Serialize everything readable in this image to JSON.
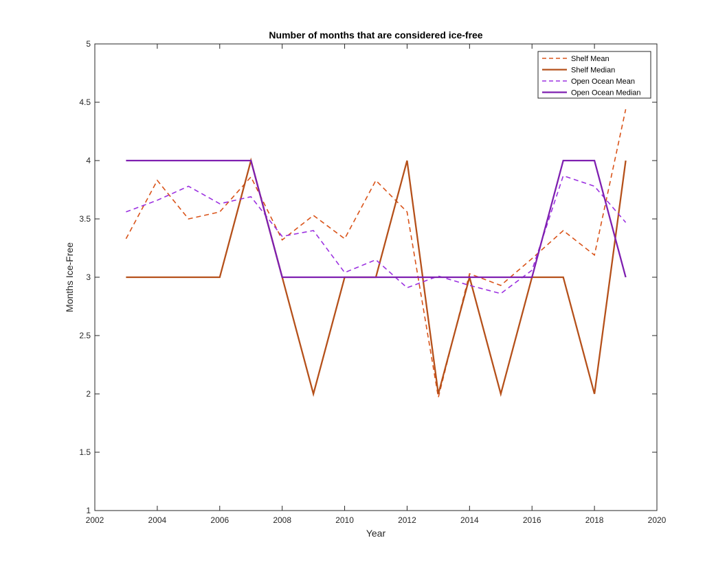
{
  "chart_data": {
    "type": "line",
    "title": "Number of months that are considered ice-free",
    "xlabel": "Year",
    "ylabel": "Months Ice-Free",
    "xlim": [
      2002,
      2020
    ],
    "ylim": [
      1,
      5
    ],
    "x_ticks": [
      2002,
      2004,
      2006,
      2008,
      2010,
      2012,
      2014,
      2016,
      2018,
      2020
    ],
    "y_ticks": [
      1,
      1.5,
      2,
      2.5,
      3,
      3.5,
      4,
      4.5,
      5
    ],
    "grid": false,
    "legend_position": "top-right",
    "x": [
      2003,
      2004,
      2005,
      2006,
      2007,
      2008,
      2009,
      2010,
      2011,
      2012,
      2013,
      2014,
      2015,
      2016,
      2017,
      2018,
      2019
    ],
    "series": [
      {
        "name": "Shelf Mean",
        "color": "#D95319",
        "dashed": true,
        "values": [
          3.33,
          3.83,
          3.5,
          3.56,
          3.86,
          3.32,
          3.53,
          3.33,
          3.83,
          3.56,
          1.97,
          3.03,
          2.93,
          3.16,
          3.4,
          3.19,
          4.44
        ]
      },
      {
        "name": "Shelf Median",
        "color": "#B5501A",
        "dashed": false,
        "values": [
          3,
          3,
          3,
          3,
          4,
          3,
          2,
          3,
          3,
          4,
          2,
          3,
          2,
          3,
          3,
          2,
          4
        ]
      },
      {
        "name": "Open Ocean Mean",
        "color": "#9B30E0",
        "dashed": true,
        "values": [
          3.56,
          3.66,
          3.78,
          3.63,
          3.69,
          3.35,
          3.4,
          3.04,
          3.15,
          2.91,
          3.01,
          2.93,
          2.86,
          3.06,
          3.87,
          3.78,
          3.47
        ]
      },
      {
        "name": "Open Ocean Median",
        "color": "#7E1FB0",
        "dashed": false,
        "values": [
          4,
          4,
          4,
          4,
          4,
          3,
          3,
          3,
          3,
          3,
          3,
          3,
          3,
          3,
          4,
          4,
          3
        ]
      }
    ]
  }
}
